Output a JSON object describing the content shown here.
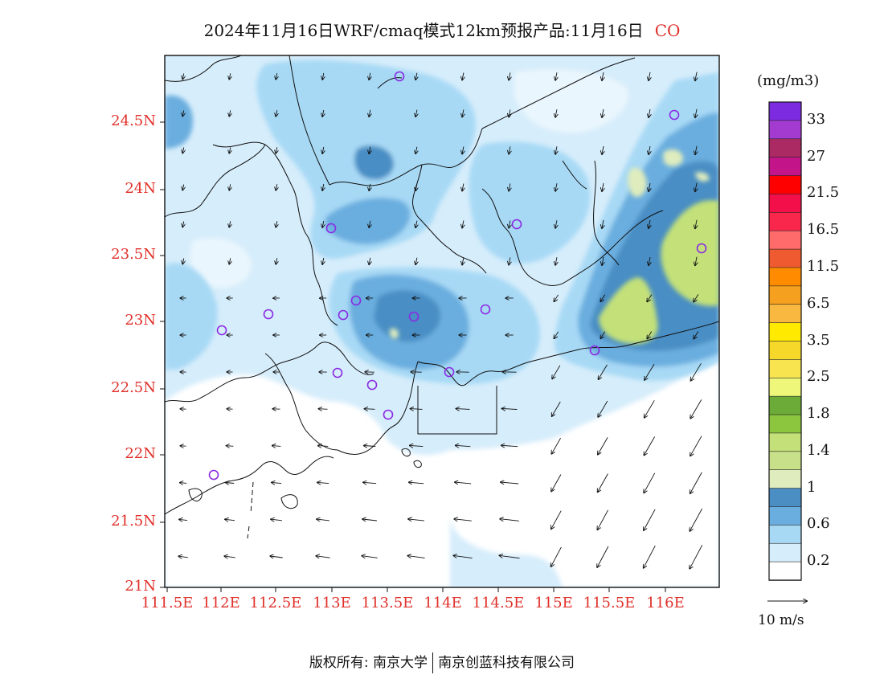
{
  "title": {
    "text": "2024年11月16日WRF/cmaq模式12km预报产品:11月16日",
    "species": "CO"
  },
  "map": {
    "lat_labels": [
      "24.5N",
      "24N",
      "23.5N",
      "23N",
      "22.5N",
      "22N",
      "21.5N",
      "21N"
    ],
    "lon_labels": [
      "111.5E",
      "112E",
      "112.5E",
      "113E",
      "113.5E",
      "114E",
      "114.5E",
      "115E",
      "115.5E",
      "116E"
    ]
  },
  "colorbar": {
    "unit": "(mg/m3)",
    "ticks": [
      "33",
      "27",
      "21.5",
      "16.5",
      "11.5",
      "6.5",
      "3.5",
      "2.5",
      "1.8",
      "1.4",
      "1",
      "0.6",
      "0.2"
    ],
    "colors_top_to_bottom": [
      "#7d2be0",
      "#a43bd1",
      "#ab2a63",
      "#c4148a",
      "#ff0000",
      "#f20f4a",
      "#f9274c",
      "#ff6a6a",
      "#f05a30",
      "#ff8c00",
      "#f6a020",
      "#f9b840",
      "#ffea00",
      "#f6d82a",
      "#f7e44e",
      "#eef77a",
      "#6cab38",
      "#8cc63f",
      "#c3e079",
      "#c9e08a",
      "#dfecbd",
      "#4a8ec4",
      "#6aaedf",
      "#a7d9f5",
      "#d6edfb",
      "#ffffff"
    ]
  },
  "wind_reference": {
    "label": "10 m/s"
  },
  "footer": {
    "left": "版权所有: 南京大学",
    "right": "南京创蓝科技有限公司"
  }
}
